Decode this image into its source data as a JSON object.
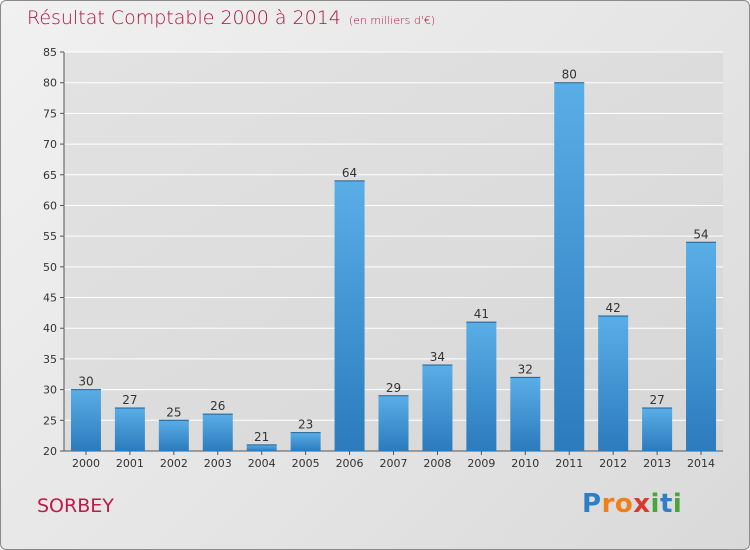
{
  "chart_data": {
    "type": "bar",
    "title": "Résultat Comptable 2000 à 2014",
    "subtitle": "(en milliers d'€)",
    "categories": [
      "2000",
      "2001",
      "2002",
      "2003",
      "2004",
      "2005",
      "2006",
      "2007",
      "2008",
      "2009",
      "2010",
      "2011",
      "2012",
      "2013",
      "2014"
    ],
    "values": [
      30,
      27,
      25,
      26,
      21,
      23,
      64,
      29,
      34,
      41,
      32,
      80,
      42,
      27,
      54
    ],
    "ylim": [
      20,
      85
    ],
    "yticks": [
      20,
      25,
      30,
      35,
      40,
      45,
      50,
      55,
      60,
      65,
      70,
      75,
      80,
      85
    ],
    "xlabel": "",
    "ylabel": "",
    "grid": true,
    "legend": "none"
  },
  "footer": {
    "commune": "SORBEY",
    "logo_letters": [
      {
        "ch": "P",
        "color": "#2f7fc8"
      },
      {
        "ch": "r",
        "color": "#f07f1a"
      },
      {
        "ch": "o",
        "color": "#f07f1a"
      },
      {
        "ch": "x",
        "color": "#d93a2a"
      },
      {
        "ch": "i",
        "color": "#49a43a"
      },
      {
        "ch": "t",
        "color": "#2f7fc8"
      },
      {
        "ch": "i",
        "color": "#49a43a"
      }
    ]
  },
  "colors": {
    "bar_light": "#5aaee6",
    "bar_dark": "#2b7bbd",
    "title": "#b0123c",
    "grid": "#ffffff",
    "axis_text": "#333333"
  }
}
